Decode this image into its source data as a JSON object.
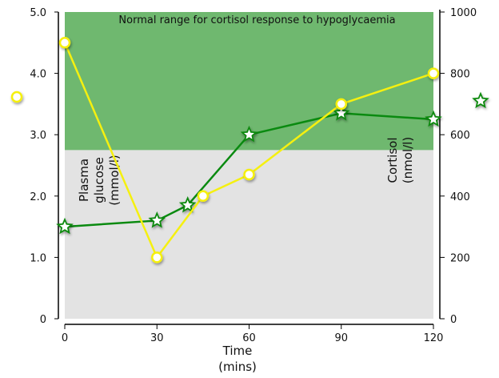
{
  "chart_data": {
    "type": "line",
    "title": "",
    "annotation": "Normal range for cortisol response to hypoglycaemia",
    "normal_range_cortisol_min": 550,
    "xlabel": "Time (mins)",
    "xlabel_lines": [
      "Time",
      "(mins)"
    ],
    "ylabel_left_lines": [
      "Plasma",
      "glucose",
      "(mmol/l)"
    ],
    "ylabel_right_lines": [
      "Cortisol",
      "(nmol/l)"
    ],
    "xlim": [
      0,
      120
    ],
    "ylim_left": [
      0,
      5
    ],
    "ylim_right": [
      0,
      1000
    ],
    "xticks": [
      "0",
      "30",
      "60",
      "90",
      "120"
    ],
    "yticks_left": [
      "0",
      "1.0",
      "2.0",
      "3.0",
      "4.0",
      "5.0"
    ],
    "yticks_right": [
      "0",
      "200",
      "400",
      "600",
      "800",
      "1000"
    ],
    "series": [
      {
        "name": "Plasma glucose",
        "axis": "left",
        "color": "#f5f010",
        "marker": "circle",
        "x": [
          0,
          30,
          45,
          60,
          90,
          120
        ],
        "y": [
          4.5,
          1.0,
          2.0,
          2.35,
          3.5,
          4.0
        ]
      },
      {
        "name": "Cortisol",
        "axis": "right",
        "color": "#0a8a10",
        "marker": "star",
        "x": [
          0,
          30,
          40,
          60,
          90,
          120
        ],
        "y": [
          300,
          320,
          370,
          600,
          670,
          650
        ]
      }
    ]
  }
}
